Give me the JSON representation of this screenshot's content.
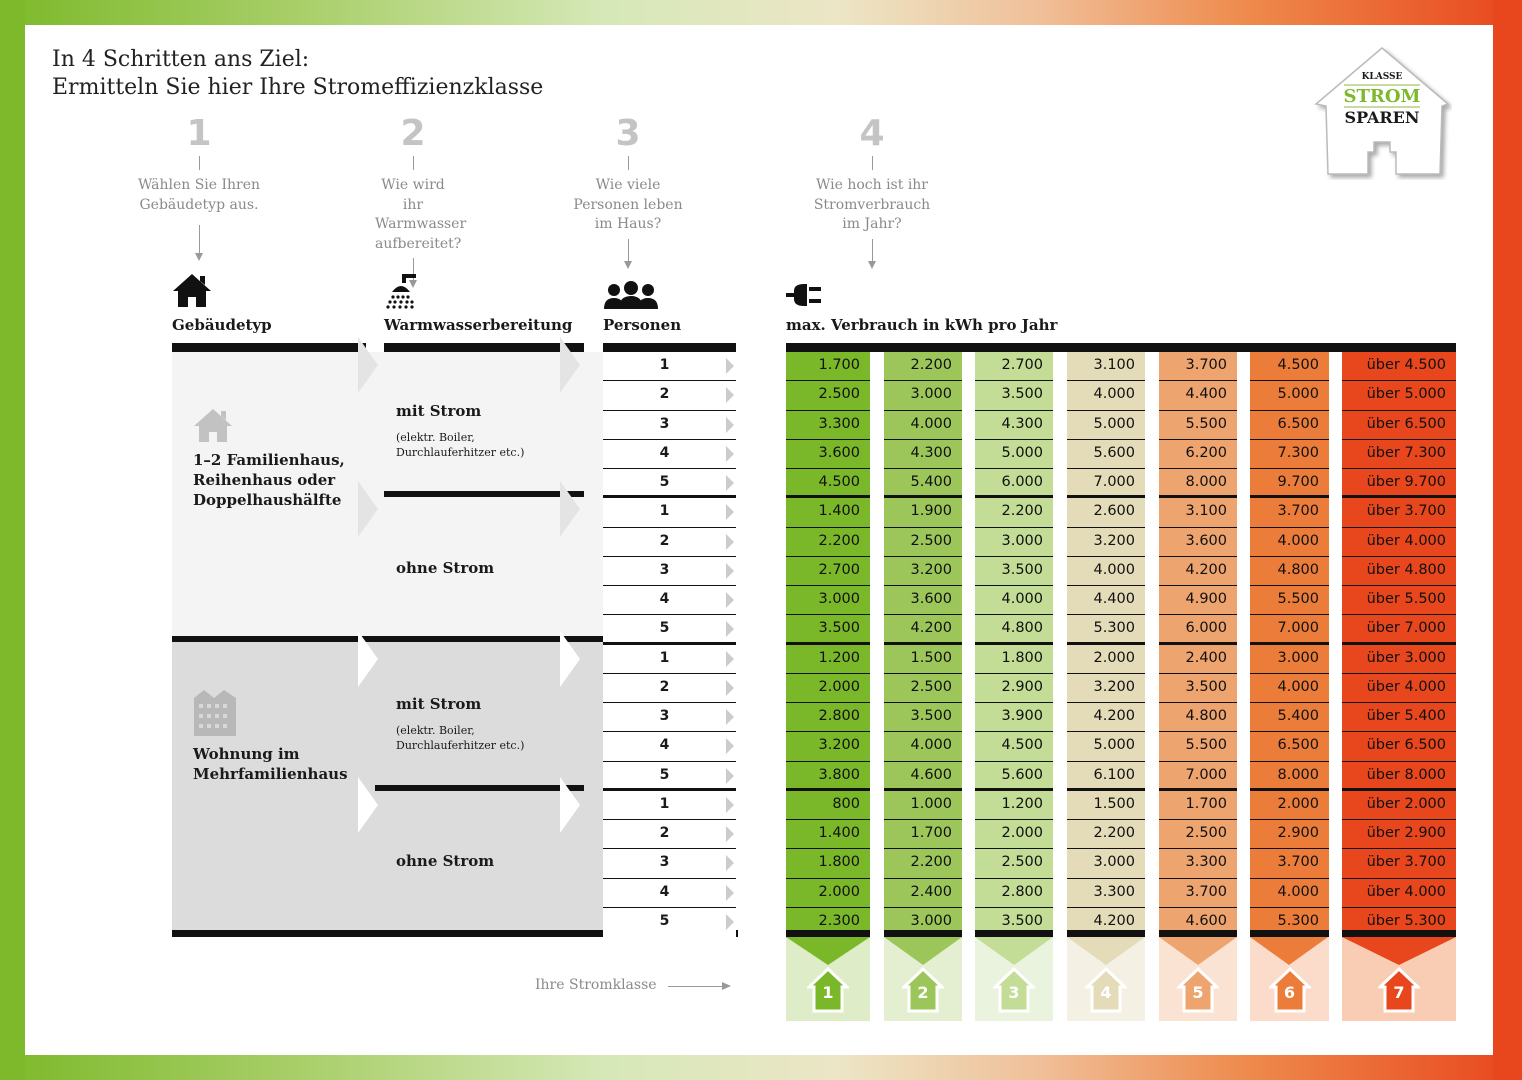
{
  "title": [
    "In 4 Schritten ans Ziel:",
    "Ermitteln Sie hier Ihre Stromeffizienzklasse"
  ],
  "logo": {
    "line1": "KLASSE",
    "line2": "STROM",
    "line3": "SPAREN"
  },
  "steps": [
    {
      "num": "1",
      "text": "Wählen Sie Ihren Gebäudetyp aus."
    },
    {
      "num": "2",
      "text": "Wie wird ihr Warmwasser aufbereitet?"
    },
    {
      "num": "3",
      "text": "Wie viele Personen leben im Haus?"
    },
    {
      "num": "4",
      "text": "Wie hoch ist ihr Stromverbrauch im Jahr?"
    }
  ],
  "headers": {
    "building": "Gebäudetyp",
    "water": "Warmwasserbereitung",
    "persons": "Personen",
    "consumption": "max. Verbrauch in kWh pro Jahr"
  },
  "buildings": [
    "1–2 Familienhaus, Reihenhaus oder Doppelhaushälfte",
    "Wohnung im Mehrfamilienhaus"
  ],
  "water": {
    "with": "mit Strom",
    "with_note": "(elektr. Boiler, Durchlauferhitzer etc.)",
    "without": "ohne Strom"
  },
  "persons": [
    "1",
    "2",
    "3",
    "4",
    "5"
  ],
  "colors": [
    "#7ab82a",
    "#9cc65a",
    "#c3dc96",
    "#e4dcb8",
    "#eea46e",
    "#ec7c3a",
    "#e8461c"
  ],
  "badge_bg": [
    "#dfecc8",
    "#e4efd2",
    "#eaf3dd",
    "#f4f0e3",
    "#fbe3d4",
    "#fbdccb",
    "#f9cdb3"
  ],
  "table": [
    [
      [
        "1.700",
        "2.200",
        "2.700",
        "3.100",
        "3.700",
        "4.500",
        "über 4.500"
      ],
      [
        "2.500",
        "3.000",
        "3.500",
        "4.000",
        "4.400",
        "5.000",
        "über 5.000"
      ],
      [
        "3.300",
        "4.000",
        "4.300",
        "5.000",
        "5.500",
        "6.500",
        "über 6.500"
      ],
      [
        "3.600",
        "4.300",
        "5.000",
        "5.600",
        "6.200",
        "7.300",
        "über 7.300"
      ],
      [
        "4.500",
        "5.400",
        "6.000",
        "7.000",
        "8.000",
        "9.700",
        "über 9.700"
      ]
    ],
    [
      [
        "1.400",
        "1.900",
        "2.200",
        "2.600",
        "3.100",
        "3.700",
        "über 3.700"
      ],
      [
        "2.200",
        "2.500",
        "3.000",
        "3.200",
        "3.600",
        "4.000",
        "über 4.000"
      ],
      [
        "2.700",
        "3.200",
        "3.500",
        "4.000",
        "4.200",
        "4.800",
        "über 4.800"
      ],
      [
        "3.000",
        "3.600",
        "4.000",
        "4.400",
        "4.900",
        "5.500",
        "über 5.500"
      ],
      [
        "3.500",
        "4.200",
        "4.800",
        "5.300",
        "6.000",
        "7.000",
        "über 7.000"
      ]
    ],
    [
      [
        "1.200",
        "1.500",
        "1.800",
        "2.000",
        "2.400",
        "3.000",
        "über 3.000"
      ],
      [
        "2.000",
        "2.500",
        "2.900",
        "3.200",
        "3.500",
        "4.000",
        "über 4.000"
      ],
      [
        "2.800",
        "3.500",
        "3.900",
        "4.200",
        "4.800",
        "5.400",
        "über 5.400"
      ],
      [
        "3.200",
        "4.000",
        "4.500",
        "5.000",
        "5.500",
        "6.500",
        "über 6.500"
      ],
      [
        "3.800",
        "4.600",
        "5.600",
        "6.100",
        "7.000",
        "8.000",
        "über 8.000"
      ]
    ],
    [
      [
        "800",
        "1.000",
        "1.200",
        "1.500",
        "1.700",
        "2.000",
        "über 2.000"
      ],
      [
        "1.400",
        "1.700",
        "2.000",
        "2.200",
        "2.500",
        "2.900",
        "über 2.900"
      ],
      [
        "1.800",
        "2.200",
        "2.500",
        "3.000",
        "3.300",
        "3.700",
        "über 3.700"
      ],
      [
        "2.000",
        "2.400",
        "2.800",
        "3.300",
        "3.700",
        "4.000",
        "über 4.000"
      ],
      [
        "2.300",
        "3.000",
        "3.500",
        "4.200",
        "4.600",
        "5.300",
        "über 5.300"
      ]
    ]
  ],
  "classes": [
    "1",
    "2",
    "3",
    "4",
    "5",
    "6",
    "7"
  ],
  "class_label": "Ihre Stromklasse"
}
